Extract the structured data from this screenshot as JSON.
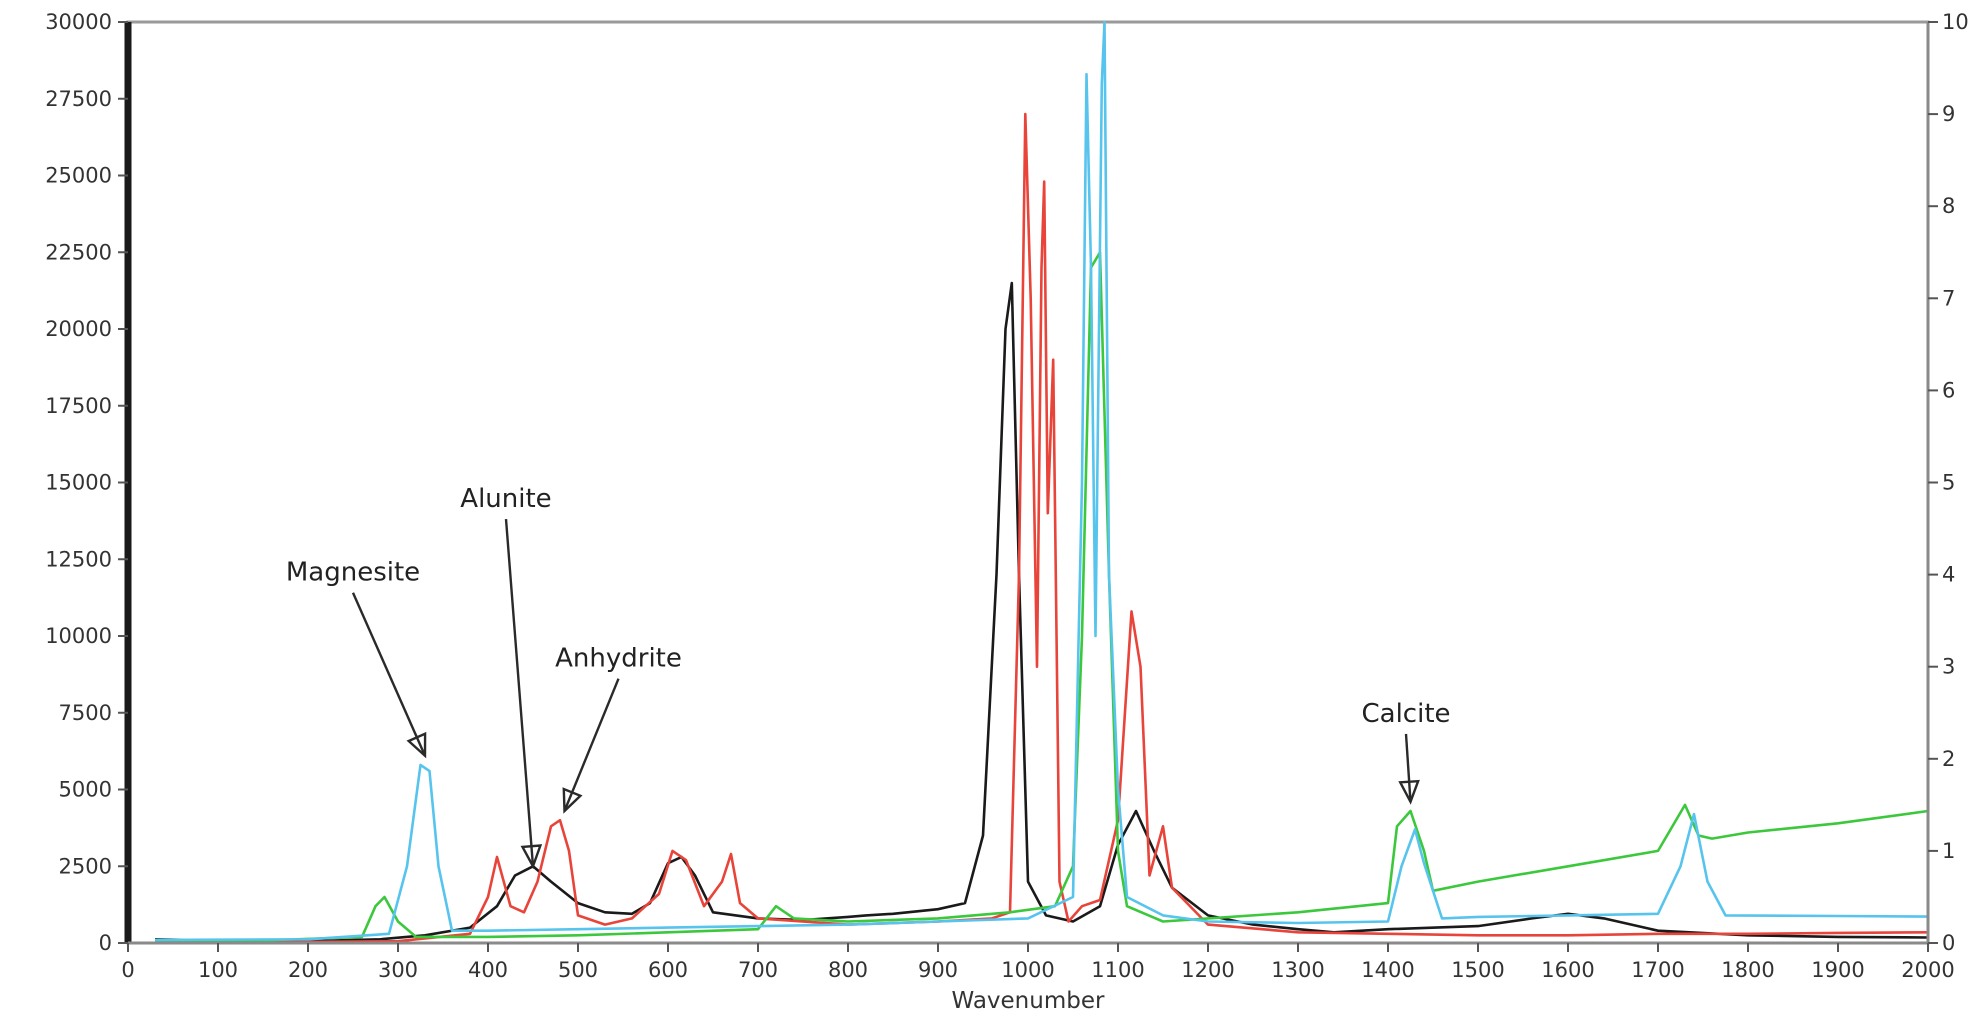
{
  "chart_data": {
    "type": "line",
    "title": "",
    "xlabel": "Wavenumber",
    "ylabel": "",
    "y2label": "",
    "xlim": [
      0,
      2000
    ],
    "ylim": [
      0,
      30000
    ],
    "y2lim": [
      0,
      10
    ],
    "grid": false,
    "legend": "none",
    "x_ticks": [
      0,
      100,
      200,
      300,
      400,
      500,
      600,
      700,
      800,
      900,
      1000,
      1100,
      1200,
      1300,
      1400,
      1500,
      1600,
      1700,
      1800,
      1900,
      2000
    ],
    "y_ticks": [
      0,
      2500,
      5000,
      7500,
      10000,
      12500,
      15000,
      17500,
      20000,
      22500,
      25000,
      27500,
      30000
    ],
    "y2_ticks": [
      0,
      1,
      2,
      3,
      4,
      5,
      6,
      7,
      8,
      9,
      10
    ],
    "series": [
      {
        "color": "#1a1a1a",
        "points": [
          [
            30,
            120
          ],
          [
            100,
            80
          ],
          [
            200,
            60
          ],
          [
            280,
            120
          ],
          [
            330,
            250
          ],
          [
            380,
            500
          ],
          [
            410,
            1200
          ],
          [
            430,
            2200
          ],
          [
            450,
            2500
          ],
          [
            470,
            2000
          ],
          [
            500,
            1300
          ],
          [
            530,
            1000
          ],
          [
            560,
            950
          ],
          [
            580,
            1300
          ],
          [
            600,
            2600
          ],
          [
            615,
            2800
          ],
          [
            630,
            2200
          ],
          [
            650,
            1000
          ],
          [
            700,
            800
          ],
          [
            750,
            750
          ],
          [
            800,
            850
          ],
          [
            820,
            900
          ],
          [
            850,
            950
          ],
          [
            900,
            1100
          ],
          [
            930,
            1300
          ],
          [
            950,
            3500
          ],
          [
            965,
            12000
          ],
          [
            975,
            20000
          ],
          [
            982,
            21500
          ],
          [
            990,
            12000
          ],
          [
            1000,
            2000
          ],
          [
            1020,
            900
          ],
          [
            1050,
            700
          ],
          [
            1080,
            1200
          ],
          [
            1100,
            3200
          ],
          [
            1120,
            4300
          ],
          [
            1140,
            3000
          ],
          [
            1160,
            1800
          ],
          [
            1200,
            900
          ],
          [
            1250,
            600
          ],
          [
            1300,
            450
          ],
          [
            1340,
            350
          ],
          [
            1400,
            450
          ],
          [
            1500,
            550
          ],
          [
            1560,
            800
          ],
          [
            1600,
            950
          ],
          [
            1640,
            800
          ],
          [
            1700,
            400
          ],
          [
            1800,
            250
          ],
          [
            1900,
            200
          ],
          [
            2000,
            180
          ]
        ]
      },
      {
        "color": "#e8443a",
        "points": [
          [
            30,
            0
          ],
          [
            300,
            60
          ],
          [
            380,
            300
          ],
          [
            400,
            1500
          ],
          [
            410,
            2800
          ],
          [
            425,
            1200
          ],
          [
            440,
            1000
          ],
          [
            455,
            2000
          ],
          [
            470,
            3800
          ],
          [
            480,
            4000
          ],
          [
            490,
            3000
          ],
          [
            500,
            900
          ],
          [
            530,
            600
          ],
          [
            560,
            800
          ],
          [
            590,
            1600
          ],
          [
            605,
            3000
          ],
          [
            620,
            2700
          ],
          [
            640,
            1200
          ],
          [
            660,
            2000
          ],
          [
            670,
            2900
          ],
          [
            680,
            1300
          ],
          [
            700,
            800
          ],
          [
            800,
            600
          ],
          [
            900,
            700
          ],
          [
            960,
            800
          ],
          [
            980,
            1000
          ],
          [
            990,
            12000
          ],
          [
            997,
            27000
          ],
          [
            1003,
            21000
          ],
          [
            1010,
            9000
          ],
          [
            1015,
            22000
          ],
          [
            1018,
            24800
          ],
          [
            1022,
            14000
          ],
          [
            1028,
            19000
          ],
          [
            1035,
            2000
          ],
          [
            1045,
            700
          ],
          [
            1060,
            1200
          ],
          [
            1080,
            1400
          ],
          [
            1100,
            4000
          ],
          [
            1115,
            10800
          ],
          [
            1125,
            9000
          ],
          [
            1135,
            2200
          ],
          [
            1150,
            3800
          ],
          [
            1160,
            1800
          ],
          [
            1200,
            600
          ],
          [
            1300,
            350
          ],
          [
            1400,
            300
          ],
          [
            1500,
            250
          ],
          [
            1600,
            250
          ],
          [
            1700,
            300
          ],
          [
            1800,
            300
          ],
          [
            1900,
            330
          ],
          [
            2000,
            350
          ]
        ]
      },
      {
        "color": "#3cc83c",
        "points": [
          [
            30,
            50
          ],
          [
            150,
            80
          ],
          [
            260,
            200
          ],
          [
            275,
            1200
          ],
          [
            285,
            1500
          ],
          [
            300,
            700
          ],
          [
            320,
            200
          ],
          [
            400,
            200
          ],
          [
            500,
            250
          ],
          [
            600,
            350
          ],
          [
            700,
            450
          ],
          [
            720,
            1200
          ],
          [
            740,
            800
          ],
          [
            800,
            700
          ],
          [
            900,
            800
          ],
          [
            980,
            1000
          ],
          [
            1030,
            1200
          ],
          [
            1050,
            2500
          ],
          [
            1060,
            10000
          ],
          [
            1070,
            22000
          ],
          [
            1080,
            22500
          ],
          [
            1090,
            12000
          ],
          [
            1100,
            3000
          ],
          [
            1110,
            1200
          ],
          [
            1150,
            700
          ],
          [
            1200,
            800
          ],
          [
            1300,
            1000
          ],
          [
            1400,
            1300
          ],
          [
            1410,
            3800
          ],
          [
            1425,
            4300
          ],
          [
            1440,
            3000
          ],
          [
            1450,
            1700
          ],
          [
            1500,
            2000
          ],
          [
            1600,
            2500
          ],
          [
            1700,
            3000
          ],
          [
            1730,
            4500
          ],
          [
            1745,
            3500
          ],
          [
            1760,
            3400
          ],
          [
            1800,
            3600
          ],
          [
            1900,
            3900
          ],
          [
            2000,
            4300
          ]
        ]
      },
      {
        "color": "#57c4ee",
        "points": [
          [
            30,
            100
          ],
          [
            200,
            120
          ],
          [
            290,
            300
          ],
          [
            310,
            2500
          ],
          [
            325,
            5800
          ],
          [
            335,
            5600
          ],
          [
            345,
            2500
          ],
          [
            360,
            400
          ],
          [
            400,
            400
          ],
          [
            500,
            450
          ],
          [
            600,
            500
          ],
          [
            700,
            550
          ],
          [
            800,
            600
          ],
          [
            900,
            700
          ],
          [
            1000,
            800
          ],
          [
            1050,
            1500
          ],
          [
            1060,
            15000
          ],
          [
            1065,
            28300
          ],
          [
            1070,
            22000
          ],
          [
            1075,
            10000
          ],
          [
            1082,
            28000
          ],
          [
            1085,
            30000
          ],
          [
            1090,
            12000
          ],
          [
            1100,
            5000
          ],
          [
            1110,
            1500
          ],
          [
            1150,
            900
          ],
          [
            1200,
            700
          ],
          [
            1300,
            650
          ],
          [
            1400,
            700
          ],
          [
            1415,
            2500
          ],
          [
            1430,
            3700
          ],
          [
            1440,
            2600
          ],
          [
            1460,
            800
          ],
          [
            1500,
            850
          ],
          [
            1600,
            900
          ],
          [
            1700,
            950
          ],
          [
            1725,
            2500
          ],
          [
            1740,
            4200
          ],
          [
            1755,
            2000
          ],
          [
            1775,
            900
          ],
          [
            1900,
            880
          ],
          [
            2000,
            860
          ]
        ]
      }
    ],
    "annotations": [
      {
        "text": "Magnesite",
        "label_x": 250,
        "label_y": 11800,
        "target_x": 330,
        "target_y": 6100
      },
      {
        "text": "Alunite",
        "label_x": 420,
        "label_y": 14200,
        "target_x": 450,
        "target_y": 2500
      },
      {
        "text": "Anhydrite",
        "label_x": 545,
        "label_y": 9000,
        "target_x": 485,
        "target_y": 4300
      },
      {
        "text": "Calcite",
        "label_x": 1420,
        "label_y": 7200,
        "target_x": 1425,
        "target_y": 4600
      }
    ]
  }
}
